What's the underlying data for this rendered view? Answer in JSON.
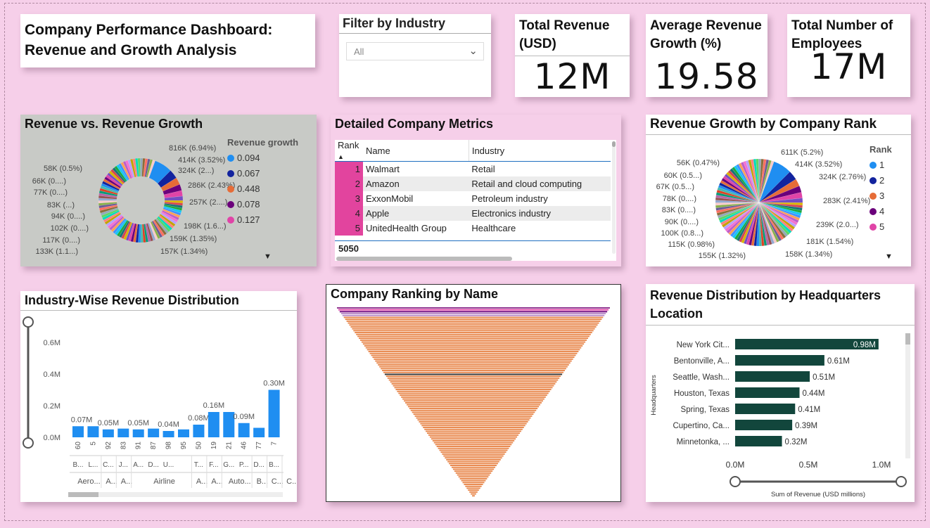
{
  "dashboard": {
    "title_line1": "Company Performance Dashboard:",
    "title_line2": "Revenue and Growth Analysis"
  },
  "filter": {
    "title": "Filter by Industry",
    "selected": "All"
  },
  "kpis": {
    "total_revenue": {
      "label": "Total Revenue (USD)",
      "value": "12M"
    },
    "avg_growth": {
      "label": "Average Revenue Growth (%)",
      "value": "19.58"
    },
    "employees": {
      "label": "Total Number of Employees",
      "value": "17M"
    }
  },
  "table": {
    "title": "Detailed Company Metrics",
    "headers": [
      "Rank",
      "Name",
      "Industry"
    ],
    "rows": [
      [
        "1",
        "Walmart",
        "Retail"
      ],
      [
        "2",
        "Amazon",
        "Retail and cloud computing"
      ],
      [
        "3",
        "ExxonMobil",
        "Petroleum industry"
      ],
      [
        "4",
        "Apple",
        "Electronics industry"
      ],
      [
        "5",
        "UnitedHealth Group",
        "Healthcare"
      ]
    ],
    "total": "5050"
  },
  "chart_data": [
    {
      "type": "pie",
      "donut": true,
      "title": "Revenue vs. Revenue Growth",
      "legend_title": "Revenue growth",
      "legend": [
        {
          "name": "0.094",
          "color": "#1f8ef1"
        },
        {
          "name": "0.067",
          "color": "#12239e"
        },
        {
          "name": "0.448",
          "color": "#e66c37"
        },
        {
          "name": "0.078",
          "color": "#6b007b"
        },
        {
          "name": "0.127",
          "color": "#e044a7"
        }
      ],
      "slice_labels": [
        "816K (6.94%)",
        "414K (3.52%)",
        "324K (2...)",
        "286K (2.43%)",
        "257K (2....)",
        "198K (1.6...)",
        "159K (1.35%)",
        "157K (1.34%)",
        "133K (1.1...)",
        "117K (0....)",
        "102K (0....)",
        "94K (0....)",
        "83K (...)",
        "77K (0....)",
        "66K (0....)",
        "58K (0.5%)"
      ],
      "legend_placement": "right"
    },
    {
      "type": "pie",
      "title": "Revenue Growth by Company Rank",
      "legend_title": "Rank",
      "legend": [
        {
          "name": "1",
          "color": "#1f8ef1"
        },
        {
          "name": "2",
          "color": "#12239e"
        },
        {
          "name": "3",
          "color": "#e66c37"
        },
        {
          "name": "4",
          "color": "#6b007b"
        },
        {
          "name": "5",
          "color": "#e044a7"
        }
      ],
      "slice_labels": [
        "611K (5.2%)",
        "414K (3.52%)",
        "324K (2.76%)",
        "283K (2.41%)",
        "239K (2.0...)",
        "181K (1.54%)",
        "158K (1.34%)",
        "155K (1.32%)",
        "115K (0.98%)",
        "100K (0.8...)",
        "90K (0....)",
        "83K (0....)",
        "78K (0....)",
        "67K (0.5...)",
        "60K (0.5...)",
        "56K (0.47%)"
      ],
      "legend_placement": "right"
    },
    {
      "type": "bar",
      "title": "Industry-Wise Revenue Distribution",
      "categories": [
        "60",
        "5",
        "92",
        "83",
        "91",
        "87",
        "98",
        "95",
        "50",
        "19",
        "21",
        "46",
        "77",
        "7"
      ],
      "sub_labels": [
        "B...",
        "L...",
        "C...",
        "J...",
        "A...",
        "D...",
        "U...",
        "",
        "T...",
        "F...",
        "G...",
        "P...",
        "D...",
        "B..."
      ],
      "groups": [
        {
          "name": "Aero...",
          "span": 2
        },
        {
          "name": "A...",
          "span": 1
        },
        {
          "name": "A...",
          "span": 1
        },
        {
          "name": "Airline",
          "span": 4
        },
        {
          "name": "A...",
          "span": 1
        },
        {
          "name": "A...",
          "span": 1
        },
        {
          "name": "Auto...",
          "span": 2
        },
        {
          "name": "B...",
          "span": 1
        },
        {
          "name": "C...",
          "span": 1
        },
        {
          "name": "C...",
          "span": 1
        }
      ],
      "values": [
        0.07,
        0.07,
        0.05,
        0.055,
        0.05,
        0.055,
        0.04,
        0.05,
        0.08,
        0.16,
        0.16,
        0.09,
        0.06,
        0.3
      ],
      "data_labels": [
        "0.07M",
        "",
        "0.05M",
        "",
        "0.05M",
        "",
        "0.04M",
        "",
        "0.08M",
        "0.16M",
        "",
        "0.09M",
        "",
        "0.30M"
      ],
      "yticks": [
        "0.0M",
        "0.2M",
        "0.4M",
        "0.6M"
      ],
      "ylim": [
        0,
        0.6
      ],
      "color": "#1f8ef1"
    },
    {
      "type": "funnel",
      "title": "Company Ranking by Name",
      "color": "#e8864a"
    },
    {
      "type": "bar",
      "orientation": "horizontal",
      "title": "Revenue Distribution by Headquarters Location",
      "categories": [
        "New York Cit...",
        "Bentonville, A...",
        "Seattle, Wash...",
        "Houston, Texas",
        "Spring, Texas",
        "Cupertino, Ca...",
        "Minnetonka, ..."
      ],
      "values": [
        0.98,
        0.61,
        0.51,
        0.44,
        0.41,
        0.39,
        0.32
      ],
      "data_labels": [
        "0.98M",
        "0.61M",
        "0.51M",
        "0.44M",
        "0.41M",
        "0.39M",
        "0.32M"
      ],
      "xticks": [
        "0.0M",
        "0.5M",
        "1.0M"
      ],
      "xlim": [
        0,
        1.0
      ],
      "ylabel": "Headquarters",
      "xlabel": "Sum of Revenue (USD millions)",
      "color": "#12463c"
    }
  ]
}
